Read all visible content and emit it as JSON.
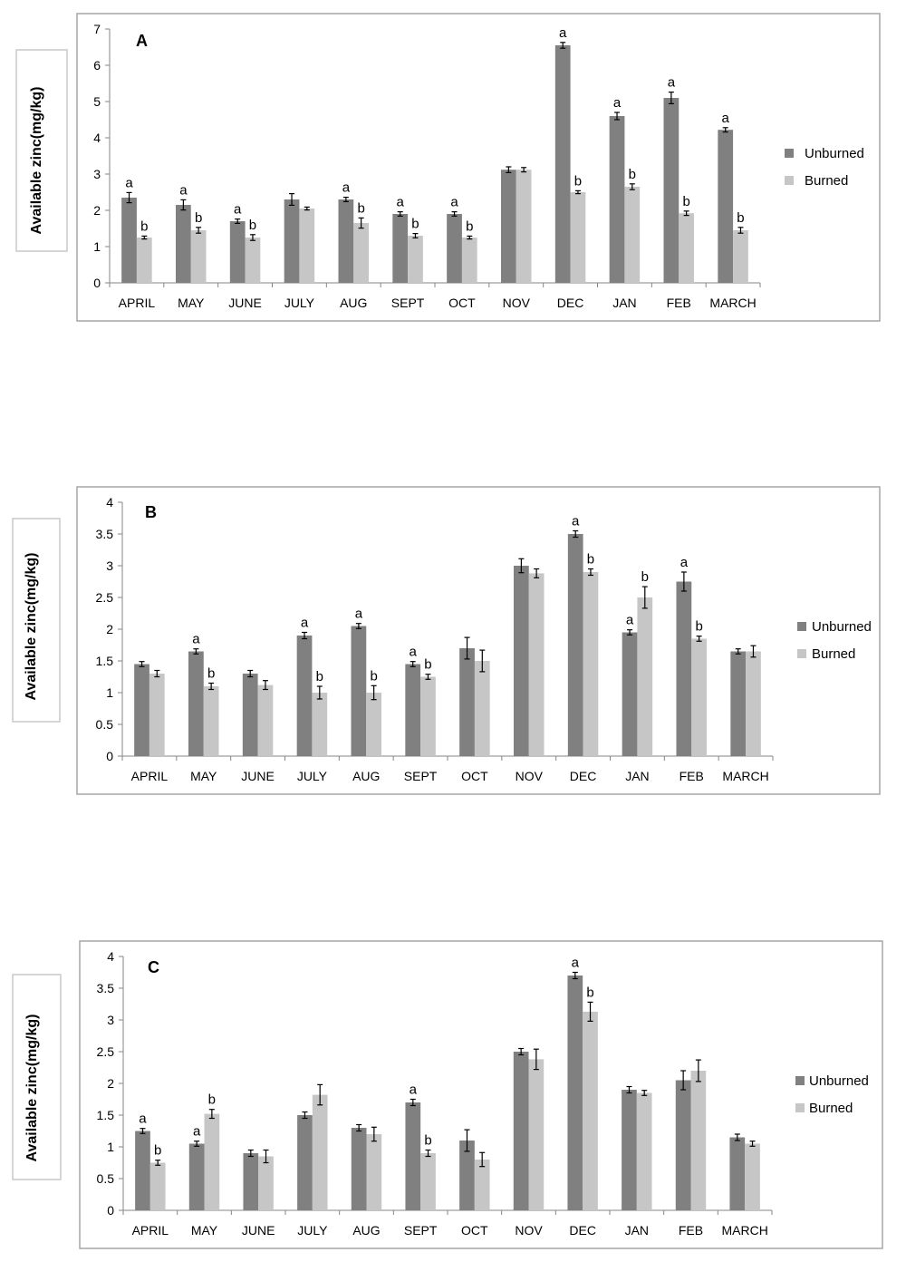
{
  "colors": {
    "unburned": "#808080",
    "burned": "#c6c6c6"
  },
  "chart_data": [
    {
      "type": "bar",
      "panel_label": "A",
      "ylabel": "Available zinc(mg/kg)",
      "xlabel": "",
      "ylim": [
        0,
        7
      ],
      "yticks": [
        "0",
        "1",
        "2",
        "3",
        "4",
        "5",
        "6",
        "7"
      ],
      "ytick_values": [
        0,
        1,
        2,
        3,
        4,
        5,
        6,
        7
      ],
      "legend_position": "right",
      "categories": [
        "APRIL",
        "MAY",
        "JUNE",
        "JULY",
        "AUG",
        "SEPT",
        "OCT",
        "NOV",
        "DEC",
        "JAN",
        "FEB",
        "MARCH"
      ],
      "series": [
        {
          "name": "Unburned",
          "values": [
            2.35,
            2.15,
            1.7,
            2.3,
            2.3,
            1.9,
            1.9,
            3.12,
            6.55,
            4.6,
            5.1,
            4.22
          ],
          "errors": [
            0.14,
            0.14,
            0.06,
            0.16,
            0.06,
            0.06,
            0.06,
            0.08,
            0.08,
            0.1,
            0.16,
            0.06
          ],
          "labels": [
            "a",
            "a",
            "a",
            "",
            "a",
            "a",
            "a",
            "",
            "a",
            "a",
            "a",
            "a"
          ]
        },
        {
          "name": "Burned",
          "values": [
            1.25,
            1.45,
            1.25,
            2.05,
            1.65,
            1.3,
            1.25,
            3.12,
            2.5,
            2.65,
            1.92,
            1.45
          ],
          "errors": [
            0.04,
            0.08,
            0.08,
            0.04,
            0.14,
            0.06,
            0.04,
            0.06,
            0.04,
            0.08,
            0.06,
            0.08
          ],
          "labels": [
            "b",
            "b",
            "b",
            "",
            "b",
            "b",
            "b",
            "",
            "b",
            "b",
            "b",
            "b"
          ]
        }
      ]
    },
    {
      "type": "bar",
      "panel_label": "B",
      "ylabel": "Available zinc(mg/kg)",
      "xlabel": "",
      "ylim": [
        0,
        4
      ],
      "yticks": [
        "0",
        "0.5",
        "1",
        "1.5",
        "2",
        "2.5",
        "3",
        "3.5",
        "4"
      ],
      "ytick_values": [
        0,
        0.5,
        1,
        1.5,
        2,
        2.5,
        3,
        3.5,
        4
      ],
      "legend_position": "right",
      "categories": [
        "APRIL",
        "MAY",
        "JUNE",
        "JULY",
        "AUG",
        "SEPT",
        "OCT",
        "NOV",
        "DEC",
        "JAN",
        "FEB",
        "MARCH"
      ],
      "series": [
        {
          "name": "Unburned",
          "values": [
            1.45,
            1.65,
            1.3,
            1.9,
            2.05,
            1.45,
            1.7,
            3.0,
            3.5,
            1.95,
            2.75,
            1.65
          ],
          "errors": [
            0.04,
            0.04,
            0.05,
            0.05,
            0.04,
            0.04,
            0.17,
            0.11,
            0.05,
            0.04,
            0.15,
            0.04
          ],
          "labels": [
            "",
            "a",
            "",
            "a",
            "a",
            "a",
            "",
            "",
            "a",
            "a",
            "a",
            ""
          ]
        },
        {
          "name": "Burned",
          "values": [
            1.3,
            1.1,
            1.12,
            1.0,
            1.0,
            1.25,
            1.5,
            2.88,
            2.9,
            2.5,
            1.85,
            1.65
          ],
          "errors": [
            0.05,
            0.05,
            0.07,
            0.1,
            0.11,
            0.04,
            0.17,
            0.07,
            0.05,
            0.17,
            0.04,
            0.09
          ],
          "labels": [
            "",
            "b",
            "",
            "b",
            "b",
            "b",
            "",
            "",
            "b",
            "b",
            "b",
            ""
          ]
        }
      ]
    },
    {
      "type": "bar",
      "panel_label": "C",
      "ylabel": "Available zinc(mg/kg)",
      "xlabel": "",
      "ylim": [
        0,
        4
      ],
      "yticks": [
        "0",
        "0.5",
        "1",
        "1.5",
        "2",
        "2.5",
        "3",
        "3.5",
        "4"
      ],
      "ytick_values": [
        0,
        0.5,
        1,
        1.5,
        2,
        2.5,
        3,
        3.5,
        4
      ],
      "legend_position": "right",
      "categories": [
        "APRIL",
        "MAY",
        "JUNE",
        "JULY",
        "AUG",
        "SEPT",
        "OCT",
        "NOV",
        "DEC",
        "JAN",
        "FEB",
        "MARCH"
      ],
      "series": [
        {
          "name": "Unburned",
          "values": [
            1.25,
            1.05,
            0.9,
            1.5,
            1.3,
            1.7,
            1.1,
            2.5,
            3.7,
            1.9,
            2.05,
            1.15
          ],
          "errors": [
            0.04,
            0.04,
            0.05,
            0.05,
            0.05,
            0.05,
            0.17,
            0.05,
            0.05,
            0.05,
            0.15,
            0.05
          ],
          "labels": [
            "a",
            "a",
            "",
            "",
            "",
            "a",
            "",
            "",
            "a",
            "",
            "",
            ""
          ]
        },
        {
          "name": "Burned",
          "values": [
            0.75,
            1.52,
            0.85,
            1.82,
            1.2,
            0.9,
            0.8,
            2.38,
            3.13,
            1.85,
            2.2,
            1.05
          ],
          "errors": [
            0.04,
            0.07,
            0.1,
            0.16,
            0.11,
            0.05,
            0.11,
            0.16,
            0.15,
            0.04,
            0.17,
            0.04
          ],
          "labels": [
            "b",
            "b",
            "",
            "",
            "",
            "b",
            "",
            "",
            "b",
            "",
            "",
            ""
          ]
        }
      ]
    }
  ]
}
